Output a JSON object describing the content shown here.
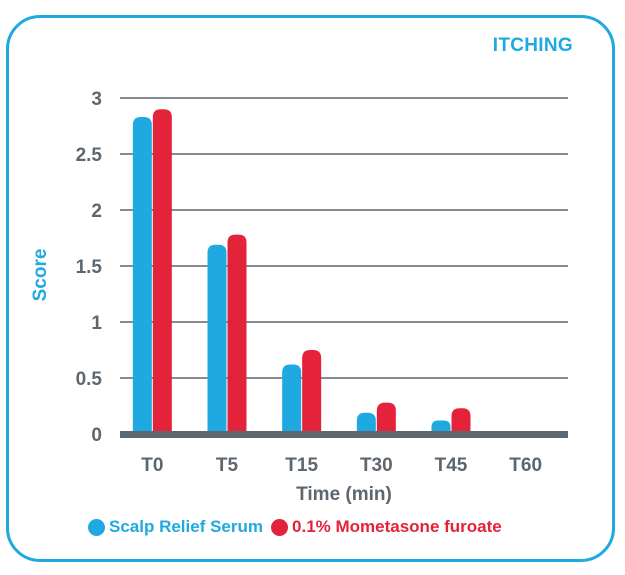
{
  "chart_data": {
    "type": "bar",
    "title": "ITCHING",
    "xlabel": "Time (min)",
    "ylabel": "Score",
    "categories": [
      "T0",
      "T5",
      "T15",
      "T30",
      "T45",
      "T60"
    ],
    "series": [
      {
        "name": "Scalp Relief Serum",
        "values": [
          2.83,
          1.69,
          0.62,
          0.19,
          0.12,
          0
        ],
        "color": "#1fa9e1"
      },
      {
        "name": "0.1% Mometasone furoate",
        "values": [
          2.9,
          1.78,
          0.75,
          0.28,
          0.23,
          0
        ],
        "color": "#e4223a"
      }
    ],
    "yticks": [
      "0",
      "0.5",
      "1",
      "1.5",
      "2",
      "2.5",
      "3"
    ],
    "ylim": [
      0,
      3
    ],
    "grid": true,
    "legend_position": "bottom"
  }
}
